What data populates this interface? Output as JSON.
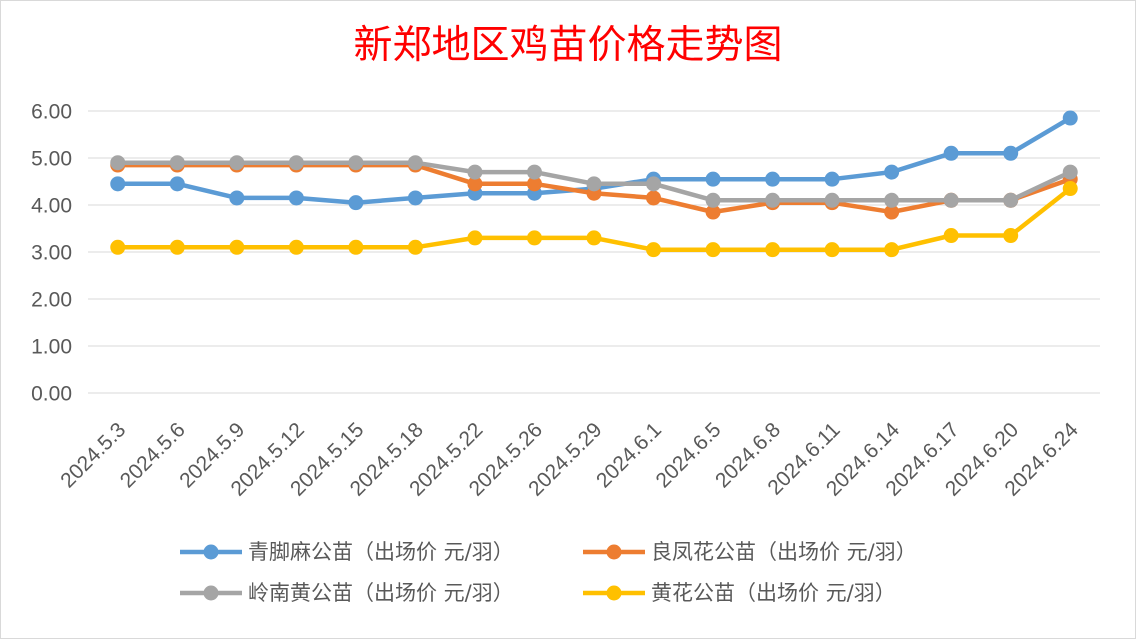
{
  "chart_data": {
    "type": "line",
    "title": "新郑地区鸡苗价格走势图",
    "categories": [
      "2024.5.3",
      "2024.5.6",
      "2024.5.9",
      "2024.5.12",
      "2024.5.15",
      "2024.5.18",
      "2024.5.22",
      "2024.5.26",
      "2024.5.29",
      "2024.6.1",
      "2024.6.5",
      "2024.6.8",
      "2024.6.11",
      "2024.6.14",
      "2024.6.17",
      "2024.6.20",
      "2024.6.24"
    ],
    "ylim": [
      0,
      6
    ],
    "ytick_labels": [
      "0.00",
      "1.00",
      "2.00",
      "3.00",
      "4.00",
      "5.00",
      "6.00"
    ],
    "grid": true,
    "legend_position": "bottom",
    "series": [
      {
        "name": "青脚麻公苗（出场价 元/羽）",
        "color": "#5B9BD5",
        "values": [
          4.45,
          4.45,
          4.15,
          4.15,
          4.05,
          4.15,
          4.25,
          4.25,
          4.35,
          4.55,
          4.55,
          4.55,
          4.55,
          4.7,
          5.1,
          5.1,
          5.85
        ]
      },
      {
        "name": "良凤花公苗（出场价 元/羽）",
        "color": "#ED7D31",
        "values": [
          4.85,
          4.85,
          4.85,
          4.85,
          4.85,
          4.85,
          4.45,
          4.45,
          4.25,
          4.15,
          3.85,
          4.05,
          4.05,
          3.85,
          4.1,
          4.1,
          4.55
        ]
      },
      {
        "name": "岭南黄公苗（出场价 元/羽）",
        "color": "#A5A5A5",
        "values": [
          4.9,
          4.9,
          4.9,
          4.9,
          4.9,
          4.9,
          4.7,
          4.7,
          4.45,
          4.45,
          4.1,
          4.1,
          4.1,
          4.1,
          4.1,
          4.1,
          4.7
        ]
      },
      {
        "name": "黄花公苗（出场价 元/羽）",
        "color": "#FFC000",
        "values": [
          3.1,
          3.1,
          3.1,
          3.1,
          3.1,
          3.1,
          3.3,
          3.3,
          3.3,
          3.05,
          3.05,
          3.05,
          3.05,
          3.05,
          3.35,
          3.35,
          4.35
        ]
      }
    ]
  },
  "colors": {
    "title": "#FF0000",
    "axis_text": "#595959",
    "gridline": "#D9D9D9"
  }
}
